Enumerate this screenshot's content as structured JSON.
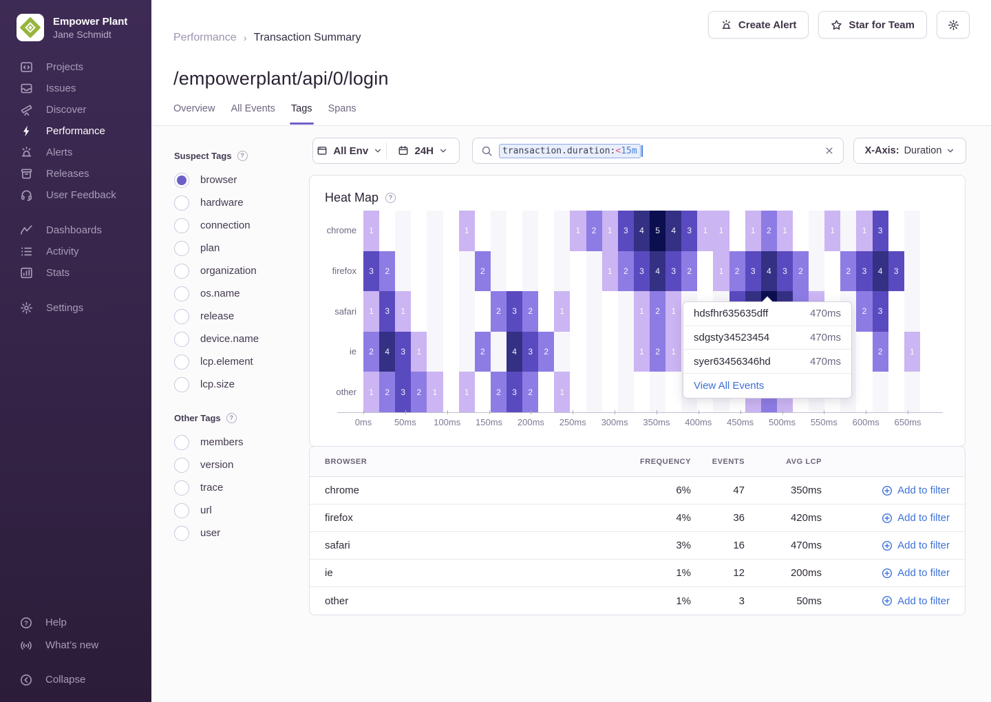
{
  "sidebar": {
    "org": "Empower Plant",
    "user": "Jane Schmidt",
    "groups": [
      {
        "items": [
          {
            "label": "Projects",
            "icon": "code-window-icon"
          },
          {
            "label": "Issues",
            "icon": "stack-icon"
          },
          {
            "label": "Discover",
            "icon": "telescope-icon"
          },
          {
            "label": "Performance",
            "icon": "lightning-icon",
            "active": true
          },
          {
            "label": "Alerts",
            "icon": "siren-icon"
          },
          {
            "label": "Releases",
            "icon": "archive-icon"
          },
          {
            "label": "User Feedback",
            "icon": "headset-icon"
          }
        ]
      },
      {
        "items": [
          {
            "label": "Dashboards",
            "icon": "chart-line-icon"
          },
          {
            "label": "Activity",
            "icon": "list-icon"
          },
          {
            "label": "Stats",
            "icon": "bar-chart-icon"
          }
        ]
      },
      {
        "items": [
          {
            "label": "Settings",
            "icon": "gear-icon"
          }
        ]
      }
    ],
    "footer": [
      {
        "label": "Help",
        "icon": "question-circle-icon"
      },
      {
        "label": "What’s new",
        "icon": "broadcast-icon"
      }
    ],
    "collapse": {
      "label": "Collapse",
      "icon": "chevron-left-circle-icon"
    }
  },
  "header": {
    "breadcrumb": {
      "parent": "Performance",
      "separator": "›",
      "current": "Transaction Summary"
    },
    "title": "/empowerplant/api/0/login",
    "tabs": [
      {
        "label": "Overview"
      },
      {
        "label": "All Events"
      },
      {
        "label": "Tags",
        "active": true
      },
      {
        "label": "Spans"
      }
    ],
    "actions": {
      "create_alert": "Create Alert",
      "star": "Star for Team"
    }
  },
  "filters": {
    "env": "All Env",
    "time_range": "24H",
    "search": {
      "field": "transaction.duration:",
      "operator": "<",
      "value": "15m"
    },
    "xaxis": {
      "label": "X-Axis:",
      "value": "Duration"
    }
  },
  "tags": {
    "suspect_title": "Suspect Tags",
    "selected": "browser",
    "suspect": [
      "browser",
      "hardware",
      "connection",
      "plan",
      "organization",
      "os.name",
      "release",
      "device.name",
      "lcp.element",
      "lcp.size"
    ],
    "other_title": "Other Tags",
    "other": [
      "members",
      "version",
      "trace",
      "url",
      "user"
    ]
  },
  "chart_data": {
    "type": "heatmap",
    "title": "Heat Map",
    "rows": [
      "chrome",
      "firefox",
      "safari",
      "ie",
      "other"
    ],
    "x_ticks": [
      "0ms",
      "50ms",
      "100ms",
      "150ms",
      "200ms",
      "250ms",
      "300ms",
      "350ms",
      "400ms",
      "450ms",
      "500ms",
      "550ms",
      "600ms",
      "650ms"
    ],
    "num_cols": 36,
    "value_colors": {
      "1": "#cbb5f2",
      "2": "#8d7ce4",
      "3": "#5a4abf",
      "4": "#343084",
      "5": "#0b0e4f"
    },
    "cells": [
      [
        0,
        0,
        1
      ],
      [
        0,
        6,
        1
      ],
      [
        0,
        13,
        1
      ],
      [
        0,
        14,
        2
      ],
      [
        0,
        15,
        1
      ],
      [
        0,
        16,
        3
      ],
      [
        0,
        17,
        4
      ],
      [
        0,
        18,
        5
      ],
      [
        0,
        19,
        4
      ],
      [
        0,
        20,
        3
      ],
      [
        0,
        21,
        1
      ],
      [
        0,
        22,
        1
      ],
      [
        0,
        24,
        1
      ],
      [
        0,
        25,
        2
      ],
      [
        0,
        26,
        1
      ],
      [
        0,
        29,
        1
      ],
      [
        0,
        31,
        1
      ],
      [
        0,
        32,
        3
      ],
      [
        1,
        0,
        3
      ],
      [
        1,
        1,
        2
      ],
      [
        1,
        7,
        2
      ],
      [
        1,
        15,
        1
      ],
      [
        1,
        16,
        2
      ],
      [
        1,
        17,
        3
      ],
      [
        1,
        18,
        4
      ],
      [
        1,
        19,
        3
      ],
      [
        1,
        20,
        2
      ],
      [
        1,
        22,
        1
      ],
      [
        1,
        23,
        2
      ],
      [
        1,
        24,
        3
      ],
      [
        1,
        25,
        4
      ],
      [
        1,
        26,
        3
      ],
      [
        1,
        27,
        2
      ],
      [
        1,
        30,
        2
      ],
      [
        1,
        31,
        3
      ],
      [
        1,
        32,
        4
      ],
      [
        1,
        33,
        3
      ],
      [
        2,
        0,
        1
      ],
      [
        2,
        1,
        3
      ],
      [
        2,
        2,
        1
      ],
      [
        2,
        8,
        2
      ],
      [
        2,
        9,
        3
      ],
      [
        2,
        10,
        2
      ],
      [
        2,
        12,
        1
      ],
      [
        2,
        17,
        1
      ],
      [
        2,
        18,
        2
      ],
      [
        2,
        19,
        1
      ],
      [
        2,
        23,
        3
      ],
      [
        2,
        24,
        4
      ],
      [
        2,
        25,
        5
      ],
      [
        2,
        26,
        4
      ],
      [
        2,
        27,
        2
      ],
      [
        2,
        28,
        1
      ],
      [
        2,
        31,
        2
      ],
      [
        2,
        32,
        3
      ],
      [
        3,
        0,
        2
      ],
      [
        3,
        1,
        4
      ],
      [
        3,
        2,
        3
      ],
      [
        3,
        3,
        1
      ],
      [
        3,
        7,
        2
      ],
      [
        3,
        9,
        4
      ],
      [
        3,
        10,
        3
      ],
      [
        3,
        11,
        2
      ],
      [
        3,
        17,
        1
      ],
      [
        3,
        18,
        2
      ],
      [
        3,
        19,
        1
      ],
      [
        3,
        32,
        2
      ],
      [
        3,
        34,
        1
      ],
      [
        4,
        0,
        1
      ],
      [
        4,
        1,
        2
      ],
      [
        4,
        2,
        3
      ],
      [
        4,
        3,
        2
      ],
      [
        4,
        4,
        1
      ],
      [
        4,
        6,
        1
      ],
      [
        4,
        8,
        2
      ],
      [
        4,
        9,
        3
      ],
      [
        4,
        10,
        2
      ],
      [
        4,
        12,
        1
      ],
      [
        4,
        24,
        1
      ],
      [
        4,
        25,
        2
      ],
      [
        4,
        26,
        1
      ]
    ]
  },
  "tooltip": {
    "rows": [
      {
        "id": "hdsfhr635635dff",
        "value": "470ms"
      },
      {
        "id": "sdgsty34523454",
        "value": "470ms"
      },
      {
        "id": "syer63456346hd",
        "value": "470ms"
      }
    ],
    "link": "View All Events"
  },
  "table": {
    "headers": [
      "BROWSER",
      "FREQUENCY",
      "EVENTS",
      "AVG LCP",
      ""
    ],
    "action_label": "Add to filter",
    "rows": [
      {
        "browser": "chrome",
        "frequency": "6%",
        "events": "47",
        "avg_lcp": "350ms"
      },
      {
        "browser": "firefox",
        "frequency": "4%",
        "events": "36",
        "avg_lcp": "420ms"
      },
      {
        "browser": "safari",
        "frequency": "3%",
        "events": "16",
        "avg_lcp": "470ms"
      },
      {
        "browser": "ie",
        "frequency": "1%",
        "events": "12",
        "avg_lcp": "200ms"
      },
      {
        "browser": "other",
        "frequency": "1%",
        "events": "3",
        "avg_lcp": "50ms"
      }
    ]
  }
}
